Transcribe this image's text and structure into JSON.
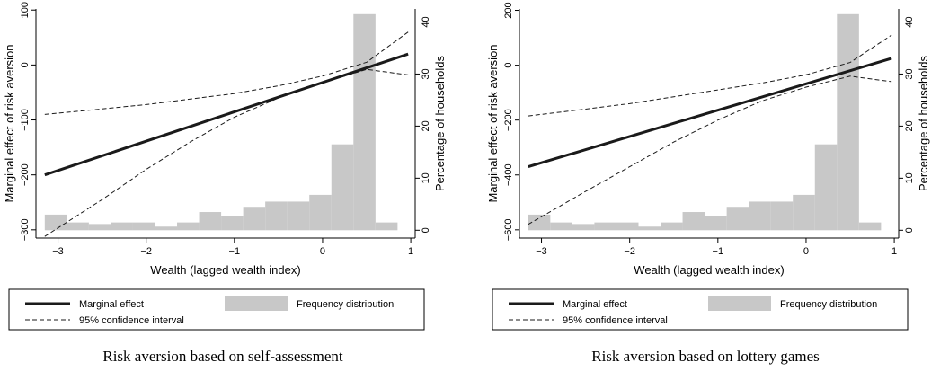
{
  "chart_data": [
    {
      "type": "line",
      "caption": "Risk aversion based on self-assessment",
      "xlabel": "Wealth (lagged wealth index)",
      "ylabel": "Marginal effect of risk aversion",
      "y2label": "Percentage of households",
      "xlim": [
        -3.25,
        1.05
      ],
      "ylim": [
        -315,
        102
      ],
      "y2lim": [
        -1.5,
        42.5
      ],
      "xticks": [
        -3,
        -2,
        -1,
        0,
        1
      ],
      "yticks": [
        -300,
        -200,
        -100,
        0,
        100
      ],
      "y2ticks": [
        0,
        10,
        20,
        30,
        40
      ],
      "series": [
        {
          "name": "Marginal effect",
          "style": "solid",
          "x": [
            -3.15,
            0.97
          ],
          "y": [
            -200,
            20
          ]
        },
        {
          "name": "95% confidence interval",
          "style": "dashed",
          "x": [
            -3.15,
            -2.5,
            -2.0,
            -1.5,
            -1.0,
            -0.5,
            0.0,
            0.5,
            0.97
          ],
          "y": [
            -90,
            -80,
            -72,
            -62,
            -52,
            -38,
            -20,
            5,
            60
          ]
        },
        {
          "name": "95% confidence interval",
          "style": "dashed",
          "x": [
            -3.15,
            -2.5,
            -2.0,
            -1.5,
            -1.0,
            -0.5,
            0.0,
            0.5,
            0.97
          ],
          "y": [
            -312,
            -245,
            -190,
            -140,
            -95,
            -60,
            -32,
            -8,
            -18
          ]
        }
      ],
      "histogram": {
        "name": "Frequency distribution",
        "bin_edges": [
          -3.15,
          -2.9,
          -2.65,
          -2.4,
          -2.15,
          -1.9,
          -1.65,
          -1.4,
          -1.15,
          -0.9,
          -0.65,
          -0.4,
          -0.15,
          0.1,
          0.35,
          0.6,
          0.85
        ],
        "values": [
          3.0,
          1.5,
          1.2,
          1.5,
          1.5,
          0.7,
          1.5,
          3.5,
          2.8,
          4.5,
          5.5,
          5.5,
          6.8,
          16.5,
          41.5,
          1.5
        ]
      },
      "legend": {
        "position": "bottom",
        "items": [
          "Marginal effect",
          "Frequency distribution",
          "95% confidence interval"
        ]
      }
    },
    {
      "type": "line",
      "caption": "Risk aversion based on lottery games",
      "xlabel": "Wealth (lagged wealth index)",
      "ylabel": "Marginal effect of risk aversion",
      "y2label": "Percentage of households",
      "xlim": [
        -3.25,
        1.05
      ],
      "ylim": [
        -630,
        205
      ],
      "y2lim": [
        -1.5,
        42.5
      ],
      "xticks": [
        -3,
        -2,
        -1,
        0,
        1
      ],
      "yticks": [
        -600,
        -400,
        -200,
        0,
        200
      ],
      "y2ticks": [
        0,
        10,
        20,
        30,
        40
      ],
      "series": [
        {
          "name": "Marginal effect",
          "style": "solid",
          "x": [
            -3.15,
            0.97
          ],
          "y": [
            -370,
            25
          ]
        },
        {
          "name": "95% confidence interval",
          "style": "dashed",
          "x": [
            -3.15,
            -2.5,
            -2.0,
            -1.5,
            -1.0,
            -0.5,
            0.0,
            0.5,
            0.97
          ],
          "y": [
            -185,
            -160,
            -140,
            -115,
            -90,
            -65,
            -35,
            10,
            110
          ]
        },
        {
          "name": "95% confidence interval",
          "style": "dashed",
          "x": [
            -3.15,
            -2.5,
            -2.0,
            -1.5,
            -1.0,
            -0.5,
            0.0,
            0.5,
            0.97
          ],
          "y": [
            -580,
            -460,
            -370,
            -280,
            -200,
            -130,
            -80,
            -40,
            -60
          ]
        }
      ],
      "histogram": {
        "name": "Frequency distribution",
        "bin_edges": [
          -3.15,
          -2.9,
          -2.65,
          -2.4,
          -2.15,
          -1.9,
          -1.65,
          -1.4,
          -1.15,
          -0.9,
          -0.65,
          -0.4,
          -0.15,
          0.1,
          0.35,
          0.6,
          0.85
        ],
        "values": [
          3.0,
          1.5,
          1.2,
          1.5,
          1.5,
          0.7,
          1.5,
          3.5,
          2.8,
          4.5,
          5.5,
          5.5,
          6.8,
          16.5,
          41.5,
          1.5
        ]
      },
      "legend": {
        "position": "bottom",
        "items": [
          "Marginal effect",
          "Frequency distribution",
          "95% confidence interval"
        ]
      }
    }
  ],
  "colors": {
    "line": "#1a1a1a",
    "histogram": "#c8c8c8"
  }
}
